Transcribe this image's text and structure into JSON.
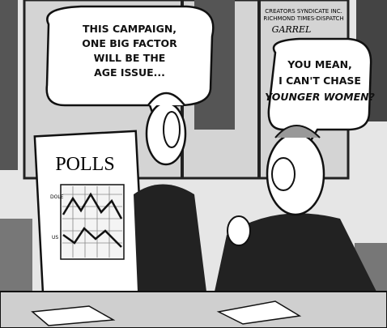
{
  "cartoon": {
    "left_bubble": {
      "lines": [
        "THIS CAMPAIGN,",
        "ONE BIG FACTOR",
        "WILL BE THE",
        "AGE ISSUE..."
      ]
    },
    "right_bubble": {
      "lines": [
        "YOU MEAN,",
        "I CAN'T CHASE",
        "YOUNGER WOMEN?"
      ]
    },
    "poster": {
      "title": "POLLS",
      "labels": [
        "DOLE",
        "US"
      ]
    },
    "credit": {
      "lines": [
        "CREATORS SYNDICATE INC.",
        "RICHMOND TIMES-DISPATCH"
      ],
      "signature": "GARREL"
    }
  }
}
